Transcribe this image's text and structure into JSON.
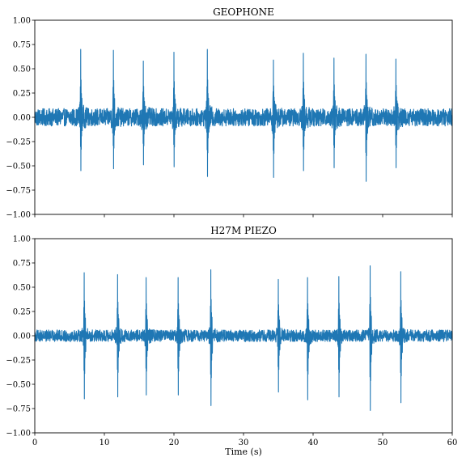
{
  "chart_data": [
    {
      "type": "line",
      "title": "GEOPHONE",
      "xlabel": "",
      "ylabel": "",
      "xlim": [
        0,
        60
      ],
      "ylim": [
        -1.0,
        1.0
      ],
      "xticks": [
        "0",
        "10",
        "20",
        "30",
        "40",
        "50",
        "60"
      ],
      "xticklabels_visible": false,
      "yticks": [
        "−1.00",
        "−0.75",
        "−0.50",
        "−0.25",
        "0.00",
        "0.25",
        "0.50",
        "0.75",
        "1.00"
      ],
      "grid": false,
      "color": "#1f77b4",
      "noise_amplitude": 0.09,
      "events": [
        {
          "t": 6.6,
          "peak": 0.7,
          "trough": -0.55
        },
        {
          "t": 11.3,
          "peak": 0.69,
          "trough": -0.53
        },
        {
          "t": 15.6,
          "peak": 0.58,
          "trough": -0.49
        },
        {
          "t": 20.0,
          "peak": 0.67,
          "trough": -0.51
        },
        {
          "t": 24.8,
          "peak": 0.7,
          "trough": -0.61
        },
        {
          "t": 34.3,
          "peak": 0.59,
          "trough": -0.62
        },
        {
          "t": 38.6,
          "peak": 0.66,
          "trough": -0.55
        },
        {
          "t": 43.0,
          "peak": 0.61,
          "trough": -0.52
        },
        {
          "t": 47.6,
          "peak": 0.65,
          "trough": -0.66
        },
        {
          "t": 51.9,
          "peak": 0.6,
          "trough": -0.52
        }
      ]
    },
    {
      "type": "line",
      "title": "H27M PIEZO",
      "xlabel": "Time (s)",
      "ylabel": "",
      "xlim": [
        0,
        60
      ],
      "ylim": [
        -1.0,
        1.0
      ],
      "xticks": [
        "0",
        "10",
        "20",
        "30",
        "40",
        "50",
        "60"
      ],
      "xticklabels_visible": true,
      "yticks": [
        "−1.00",
        "−0.75",
        "−0.50",
        "−0.25",
        "0.00",
        "0.25",
        "0.50",
        "0.75",
        "1.00"
      ],
      "grid": false,
      "color": "#1f77b4",
      "noise_amplitude": 0.06,
      "events": [
        {
          "t": 7.1,
          "peak": 0.65,
          "trough": -0.65
        },
        {
          "t": 11.9,
          "peak": 0.63,
          "trough": -0.63
        },
        {
          "t": 16.0,
          "peak": 0.6,
          "trough": -0.61
        },
        {
          "t": 20.6,
          "peak": 0.6,
          "trough": -0.61
        },
        {
          "t": 25.3,
          "peak": 0.68,
          "trough": -0.72
        },
        {
          "t": 35.0,
          "peak": 0.58,
          "trough": -0.58
        },
        {
          "t": 39.2,
          "peak": 0.6,
          "trough": -0.66
        },
        {
          "t": 43.7,
          "peak": 0.61,
          "trough": -0.63
        },
        {
          "t": 48.2,
          "peak": 0.72,
          "trough": -0.77
        },
        {
          "t": 52.6,
          "peak": 0.66,
          "trough": -0.69
        }
      ]
    }
  ]
}
